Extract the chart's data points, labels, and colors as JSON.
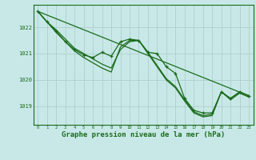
{
  "background_color": "#c8e8e8",
  "line_color": "#1a6b1a",
  "grid_color": "#b0d0d0",
  "xlabel": "Graphe pression niveau de la mer (hPa)",
  "xlabel_fontsize": 6.5,
  "yticks": [
    1019,
    1020,
    1021,
    1022
  ],
  "xlim": [
    -0.5,
    23.5
  ],
  "ylim": [
    1018.3,
    1022.85
  ],
  "series": [
    {
      "x": [
        0,
        1,
        2,
        3,
        4,
        5,
        6,
        7,
        8,
        9,
        10,
        11,
        12,
        13,
        14,
        15,
        16,
        17,
        18,
        19,
        20,
        21,
        22,
        23
      ],
      "y": [
        1022.6,
        1022.2,
        1021.85,
        1021.45,
        1021.15,
        1020.95,
        1020.85,
        1021.05,
        1020.9,
        1021.45,
        1021.55,
        1021.5,
        1021.05,
        1021.0,
        1020.5,
        1020.25,
        1019.3,
        1018.85,
        1018.75,
        1018.75,
        1019.55,
        1019.3,
        1019.55,
        1019.4
      ],
      "marker": true
    },
    {
      "x": [
        0,
        1,
        2,
        3,
        4,
        5,
        6,
        7,
        8,
        9,
        10,
        11,
        12,
        13,
        14,
        15,
        16,
        17,
        18,
        19,
        20,
        21,
        22,
        23
      ],
      "y": [
        1022.6,
        1022.2,
        1021.9,
        1021.55,
        1021.2,
        1021.0,
        1020.8,
        1020.6,
        1020.45,
        1021.15,
        1021.45,
        1021.5,
        1021.05,
        1020.55,
        1020.05,
        1019.75,
        1019.25,
        1018.8,
        1018.65,
        1018.7,
        1019.55,
        1019.3,
        1019.55,
        1019.4
      ],
      "marker": false
    },
    {
      "x": [
        0,
        23
      ],
      "y": [
        1022.6,
        1019.4
      ],
      "marker": false
    },
    {
      "x": [
        0,
        1,
        2,
        3,
        4,
        5,
        6,
        7,
        8,
        9,
        10,
        11,
        12,
        13,
        14,
        15,
        16,
        17,
        18,
        19,
        20,
        21,
        22,
        23
      ],
      "y": [
        1022.6,
        1022.2,
        1021.8,
        1021.45,
        1021.1,
        1020.85,
        1020.65,
        1020.45,
        1020.3,
        1021.25,
        1021.5,
        1021.5,
        1021.0,
        1020.5,
        1020.0,
        1019.7,
        1019.2,
        1018.75,
        1018.6,
        1018.65,
        1019.55,
        1019.25,
        1019.5,
        1019.35
      ],
      "marker": false
    }
  ]
}
